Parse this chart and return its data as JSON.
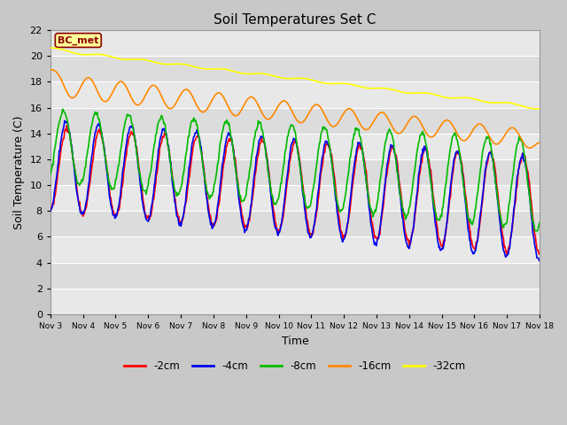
{
  "title": "Soil Temperatures Set C",
  "xlabel": "Time",
  "ylabel": "Soil Temperature (C)",
  "ylim": [
    0,
    22
  ],
  "yticks": [
    0,
    2,
    4,
    6,
    8,
    10,
    12,
    14,
    16,
    18,
    20,
    22
  ],
  "xtick_labels": [
    "Nov 3",
    "Nov 4",
    "Nov 5",
    "Nov 6",
    "Nov 7",
    "Nov 8",
    "Nov 9",
    "Nov 10",
    "Nov 11",
    "Nov 12",
    "Nov 13",
    "Nov 14",
    "Nov 15",
    "Nov 16",
    "Nov 17",
    "Nov 18"
  ],
  "series_colors": {
    "-2cm": "#ff0000",
    "-4cm": "#0000ee",
    "-8cm": "#00bb00",
    "-16cm": "#ff8800",
    "-32cm": "#ffff00"
  },
  "annotation_text": "BC_met",
  "annotation_bg": "#ffff99",
  "annotation_border": "#8b0000",
  "line_width": 1.2
}
